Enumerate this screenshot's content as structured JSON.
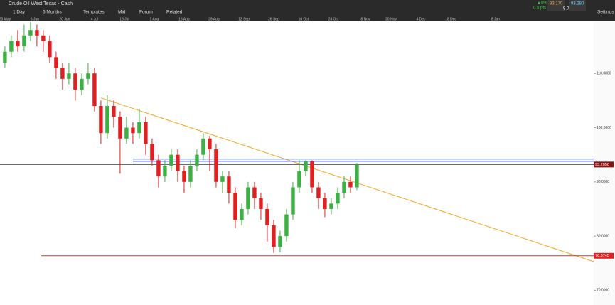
{
  "header": {
    "instrument": "Crude Oil West Texas - Cash",
    "change": "▲0%",
    "change_pts": "0.5 pts",
    "sell": "93.170",
    "buy": "93.280",
    "spread": "8.0",
    "buttons": [
      "1 Day",
      "6 Months",
      "Templates",
      "Mid",
      "Forum",
      "Related"
    ],
    "settings": "Settings"
  },
  "chart_data": {
    "type": "candlestick",
    "x": [
      0,
      3,
      6,
      9,
      12,
      15,
      18,
      21,
      24,
      27,
      30,
      33,
      36,
      39,
      42,
      45,
      48,
      51,
      54,
      57,
      60,
      63,
      66,
      69,
      72,
      75,
      78,
      81,
      84,
      87,
      90,
      93,
      96,
      99,
      102,
      105,
      108,
      111,
      114,
      117,
      120,
      123,
      126,
      129,
      132,
      135,
      138,
      141,
      144,
      147,
      150,
      153,
      156,
      159,
      162,
      165
    ],
    "open": [
      112,
      114,
      116,
      115,
      117,
      118,
      117,
      116,
      113,
      111,
      109,
      110,
      107,
      109,
      110,
      104,
      99,
      104,
      102,
      98,
      100,
      99,
      101,
      97,
      94,
      91,
      93,
      95,
      92,
      90,
      93,
      95,
      98,
      96,
      90,
      91,
      88,
      83,
      85,
      89,
      87,
      85,
      82,
      78,
      80,
      84,
      89,
      92,
      93.8,
      89,
      87,
      85,
      86,
      88,
      90,
      89
    ],
    "high": [
      115,
      117,
      118,
      119,
      119.5,
      119,
      118,
      117,
      114,
      112,
      112,
      111,
      110,
      112,
      111,
      105,
      106,
      105,
      103,
      102,
      101,
      103.5,
      102,
      98,
      95,
      94,
      96,
      96,
      93,
      94,
      96,
      99,
      98.5,
      97,
      92,
      92,
      89,
      86,
      90,
      90,
      88,
      86,
      83,
      81,
      85,
      90,
      94,
      94,
      94,
      90,
      88,
      87,
      89,
      91,
      91,
      93.5
    ],
    "low": [
      111,
      113,
      114,
      114,
      116,
      115,
      114,
      112,
      109,
      107,
      108,
      105,
      106,
      108,
      103,
      97,
      98,
      100,
      91.5,
      97,
      97,
      98,
      95,
      93,
      89,
      90,
      92,
      90,
      88,
      89,
      92,
      94,
      92,
      89,
      88,
      86,
      81.5,
      82,
      84,
      85,
      83,
      79,
      76.9,
      77,
      79,
      83,
      88,
      91,
      88,
      85,
      83.5,
      84,
      85,
      87,
      88,
      88.5
    ],
    "close": [
      114,
      116,
      115,
      117,
      118,
      117,
      116,
      113,
      111,
      109,
      110,
      107,
      109,
      110,
      104,
      99,
      104,
      102,
      98,
      100,
      99,
      101,
      97,
      94,
      91,
      93,
      95,
      92,
      90,
      93,
      95,
      98,
      96,
      90,
      91,
      88,
      83,
      85,
      89,
      87,
      85,
      82,
      78,
      80,
      84,
      89,
      92,
      93.8,
      89,
      87,
      85,
      86,
      88,
      90,
      89,
      93.2
    ],
    "up_color": "#3cb043",
    "down_color": "#e02020",
    "xlim": [
      -2.3,
      276
    ],
    "ylim": [
      67.3,
      119.6
    ],
    "xticks": [
      {
        "value": 0,
        "label": "23 May"
      },
      {
        "value": 14,
        "label": "6 Jun"
      },
      {
        "value": 28,
        "label": "20 Jun"
      },
      {
        "value": 42,
        "label": "4 Jul"
      },
      {
        "value": 56,
        "label": "18 Jul"
      },
      {
        "value": 70,
        "label": "1 Aug"
      },
      {
        "value": 84,
        "label": "15 Aug"
      },
      {
        "value": 98,
        "label": "29 Aug"
      },
      {
        "value": 112,
        "label": "12 Sep"
      },
      {
        "value": 126,
        "label": "26 Sep"
      },
      {
        "value": 140,
        "label": "10 Oct"
      },
      {
        "value": 154,
        "label": "24 Oct"
      },
      {
        "value": 169,
        "label": "8 Nov"
      },
      {
        "value": 181,
        "label": "20 Nov"
      },
      {
        "value": 195,
        "label": "4 Dec"
      },
      {
        "value": 209,
        "label": "18 Dec"
      },
      {
        "value": 230,
        "label": "8 Jan"
      }
    ],
    "yticks": [
      {
        "value": 110,
        "label": "110.0000"
      },
      {
        "value": 100,
        "label": "100.0000"
      },
      {
        "value": 90,
        "label": "90.0000"
      },
      {
        "value": 80,
        "label": "80.0000"
      },
      {
        "value": 70,
        "label": "70.0000"
      }
    ],
    "lines": [
      {
        "x": [
          45,
          276
        ],
        "y": [
          105.5,
          75.3
        ],
        "color": "#f5a623"
      },
      {
        "x": [
          60,
          276
        ],
        "y": [
          94.2,
          94.2
        ],
        "color": "#3355dd"
      },
      {
        "x": [
          60,
          276
        ],
        "y": [
          93.8,
          93.8
        ],
        "color": "#3355dd"
      },
      {
        "x": [
          -2.3,
          276
        ],
        "y": [
          93.205,
          93.205
        ],
        "color": "#555555"
      },
      {
        "x": [
          17,
          276
        ],
        "y": [
          76.3745,
          76.3745
        ],
        "color": "#e03030"
      }
    ],
    "price_tags": [
      {
        "value": 93.205,
        "label": "93.2050",
        "color": "#8b1010"
      },
      {
        "value": 76.3745,
        "label": "76.3745",
        "color": "#e02020"
      }
    ]
  }
}
